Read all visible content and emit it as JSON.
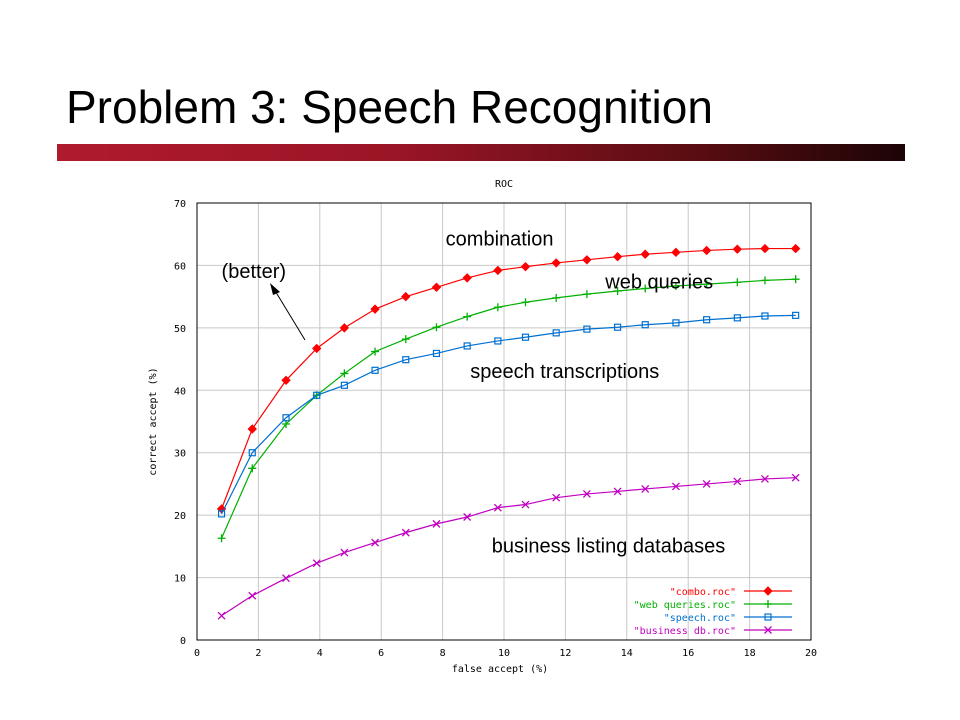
{
  "slide": {
    "title": "Problem 3: Speech Recognition"
  },
  "colors": {
    "title_bar_start": "#b01a2e",
    "title_bar_end": "#1c0406"
  },
  "chart_data": {
    "type": "line",
    "title": "ROC",
    "xlabel": "false accept (%)",
    "ylabel": "correct accept (%)",
    "xlim": [
      0,
      20
    ],
    "ylim": [
      0,
      70
    ],
    "xticks": [
      0,
      2,
      4,
      6,
      8,
      10,
      12,
      14,
      16,
      18,
      20
    ],
    "yticks": [
      0,
      10,
      20,
      30,
      40,
      50,
      60,
      70
    ],
    "grid": true,
    "legend": "bottom-right",
    "series": [
      {
        "name": "\"combo.roc\"",
        "color": "#ff0000",
        "marker": "diamond",
        "label": "combination",
        "x": [
          0.8,
          1.8,
          2.9,
          3.9,
          4.8,
          5.8,
          6.8,
          7.8,
          8.8,
          9.8,
          10.7,
          11.7,
          12.7,
          13.7,
          14.6,
          15.6,
          16.6,
          17.6,
          18.5,
          19.5
        ],
        "y": [
          21,
          33.8,
          41.6,
          46.7,
          50,
          53,
          55,
          56.5,
          58,
          59.2,
          59.8,
          60.4,
          60.9,
          61.4,
          61.8,
          62.1,
          62.4,
          62.6,
          62.7,
          62.7
        ]
      },
      {
        "name": "\"web queries.roc\"",
        "color": "#00b000",
        "marker": "plus",
        "label": "web queries",
        "x": [
          0.8,
          1.8,
          2.9,
          3.9,
          4.8,
          5.8,
          6.8,
          7.8,
          8.8,
          9.8,
          10.7,
          11.7,
          12.7,
          13.7,
          14.6,
          15.6,
          16.6,
          17.6,
          18.5,
          19.5
        ],
        "y": [
          16.3,
          27.5,
          34.6,
          39.2,
          42.7,
          46.2,
          48.2,
          50.1,
          51.8,
          53.3,
          54.1,
          54.8,
          55.4,
          55.9,
          56.3,
          56.7,
          57,
          57.3,
          57.6,
          57.8
        ]
      },
      {
        "name": "\"speech.roc\"",
        "color": "#0070d0",
        "marker": "square",
        "label": "speech transcriptions",
        "x": [
          0.8,
          1.8,
          2.9,
          3.9,
          4.8,
          5.8,
          6.8,
          7.8,
          8.8,
          9.8,
          10.7,
          11.7,
          12.7,
          13.7,
          14.6,
          15.6,
          16.6,
          17.6,
          18.5,
          19.5
        ],
        "y": [
          20.2,
          30,
          35.6,
          39.2,
          40.8,
          43.2,
          44.9,
          45.9,
          47.1,
          47.9,
          48.5,
          49.2,
          49.8,
          50.1,
          50.5,
          50.8,
          51.3,
          51.6,
          51.9,
          52
        ]
      },
      {
        "name": "\"business db.roc\"",
        "color": "#c000c0",
        "marker": "x",
        "label": "business listing databases",
        "x": [
          0.8,
          1.8,
          2.9,
          3.9,
          4.8,
          5.8,
          6.8,
          7.8,
          8.8,
          9.8,
          10.7,
          11.7,
          12.7,
          13.7,
          14.6,
          15.6,
          16.6,
          17.6,
          18.5,
          19.5
        ],
        "y": [
          3.9,
          7.1,
          9.9,
          12.3,
          14,
          15.6,
          17.2,
          18.6,
          19.7,
          21.2,
          21.7,
          22.8,
          23.4,
          23.8,
          24.2,
          24.6,
          25,
          25.4,
          25.8,
          26
        ]
      }
    ],
    "annotations": [
      {
        "text": "combination",
        "x": 8.1,
        "y": 63.2
      },
      {
        "text": "web queries",
        "x": 13.3,
        "y": 56.3
      },
      {
        "text": "speech transcriptions",
        "x": 8.9,
        "y": 42.0
      },
      {
        "text": "business listing databases",
        "x": 9.6,
        "y": 14.0
      },
      {
        "text": "(better)",
        "x": 0.8,
        "y": 58.0
      }
    ]
  }
}
